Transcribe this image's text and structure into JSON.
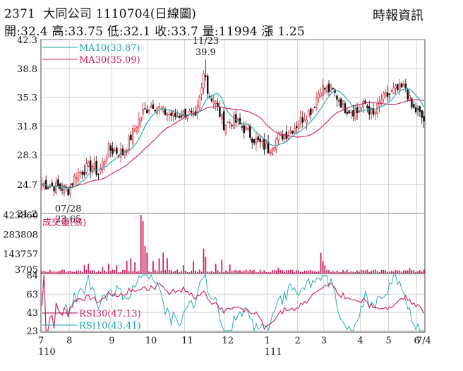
{
  "header": {
    "stock_code": "2371",
    "company": "大同公司",
    "date": "1110704",
    "chart_kind": "(日線圖)",
    "source": "時報資訊",
    "quote": {
      "open": "開:32.4",
      "high": "高:33.75",
      "low": "低:32.1",
      "close": "收:33.7",
      "volume": "量:11994",
      "change": "漲 1.25"
    }
  },
  "colors": {
    "up": "#d11a2a",
    "down": "#111111",
    "ma10": "#1aa3a6",
    "ma30": "#c81e64",
    "rsi30": "#c81e64",
    "rsi10": "#1aa3a6",
    "volume": "#c81e64",
    "grid": "#b8b8b8"
  },
  "chart_data": [
    {
      "type": "candlestick",
      "panel": "price",
      "ylim": [
        21.2,
        42.3
      ],
      "y_ticks": [
        "42.3",
        "38.8",
        "35.3",
        "31.8",
        "28.3",
        "24.7",
        "21.2"
      ],
      "legend": [
        {
          "name": "MA10(33.87)"
        },
        {
          "name": "MA30(35.09)"
        }
      ],
      "annotations": [
        {
          "date": "11/23",
          "value": "39.9",
          "label": "high"
        },
        {
          "date": "07/28",
          "value": "23.65",
          "label": "low"
        }
      ],
      "anchors": [
        {
          "i": 0,
          "v": 24.8
        },
        {
          "i": 10,
          "v": 24.3
        },
        {
          "i": 13,
          "v": 24.0
        },
        {
          "i": 17,
          "v": 26.0
        },
        {
          "i": 25,
          "v": 27.0
        },
        {
          "i": 28,
          "v": 26.0
        },
        {
          "i": 33,
          "v": 29.0
        },
        {
          "i": 40,
          "v": 28.5
        },
        {
          "i": 44,
          "v": 30.5
        },
        {
          "i": 50,
          "v": 33.5
        },
        {
          "i": 55,
          "v": 34.5
        },
        {
          "i": 60,
          "v": 33.5
        },
        {
          "i": 66,
          "v": 33.0
        },
        {
          "i": 72,
          "v": 33.5
        },
        {
          "i": 76,
          "v": 32.5
        },
        {
          "i": 80,
          "v": 37.5
        },
        {
          "i": 82,
          "v": 36.0
        },
        {
          "i": 86,
          "v": 34.5
        },
        {
          "i": 90,
          "v": 32.0
        },
        {
          "i": 95,
          "v": 32.5
        },
        {
          "i": 100,
          "v": 31.5
        },
        {
          "i": 106,
          "v": 30.0
        },
        {
          "i": 112,
          "v": 29.0
        },
        {
          "i": 117,
          "v": 30.5
        },
        {
          "i": 122,
          "v": 31.0
        },
        {
          "i": 128,
          "v": 32.5
        },
        {
          "i": 134,
          "v": 34.0
        },
        {
          "i": 138,
          "v": 36.5
        },
        {
          "i": 144,
          "v": 36.0
        },
        {
          "i": 150,
          "v": 34.0
        },
        {
          "i": 156,
          "v": 33.5
        },
        {
          "i": 160,
          "v": 34.5
        },
        {
          "i": 164,
          "v": 33.0
        },
        {
          "i": 168,
          "v": 35.0
        },
        {
          "i": 174,
          "v": 36.0
        },
        {
          "i": 180,
          "v": 36.5
        },
        {
          "i": 183,
          "v": 34.0
        },
        {
          "i": 186,
          "v": 33.5
        },
        {
          "i": 189,
          "v": 32.5
        }
      ],
      "bars": 190,
      "ma10_last": 33.87,
      "ma30_last": 35.09
    },
    {
      "type": "bar",
      "panel": "volume",
      "legend": [
        {
          "name": "成交量(張)"
        }
      ],
      "ylim": [
        0,
        423860
      ],
      "y_ticks": [
        "423860",
        "283808",
        "143757",
        "3705"
      ],
      "spikes": [
        {
          "i": 21,
          "v": 60000
        },
        {
          "i": 23,
          "v": 70000
        },
        {
          "i": 30,
          "v": 45000
        },
        {
          "i": 33,
          "v": 70000
        },
        {
          "i": 37,
          "v": 60000
        },
        {
          "i": 42,
          "v": 90000
        },
        {
          "i": 44,
          "v": 110000
        },
        {
          "i": 46,
          "v": 80000
        },
        {
          "i": 49,
          "v": 423860
        },
        {
          "i": 50,
          "v": 380000
        },
        {
          "i": 51,
          "v": 200000
        },
        {
          "i": 52,
          "v": 150000
        },
        {
          "i": 55,
          "v": 90000
        },
        {
          "i": 58,
          "v": 110000
        },
        {
          "i": 60,
          "v": 150000
        },
        {
          "i": 62,
          "v": 110000
        },
        {
          "i": 70,
          "v": 60000
        },
        {
          "i": 75,
          "v": 90000
        },
        {
          "i": 80,
          "v": 180000
        },
        {
          "i": 81,
          "v": 120000
        },
        {
          "i": 86,
          "v": 70000
        },
        {
          "i": 89,
          "v": 100000
        },
        {
          "i": 93,
          "v": 65000
        },
        {
          "i": 117,
          "v": 40000
        },
        {
          "i": 138,
          "v": 150000
        },
        {
          "i": 139,
          "v": 90000
        },
        {
          "i": 140,
          "v": 60000
        },
        {
          "i": 182,
          "v": 40000
        }
      ],
      "base_volume": 22000
    },
    {
      "type": "line",
      "panel": "rsi",
      "ylim": [
        23,
        84
      ],
      "y_ticks": [
        "84",
        "63",
        "43",
        "23"
      ],
      "series": [
        {
          "name": "RSI30(47.13)"
        },
        {
          "name": "RSI10(43.41)"
        }
      ],
      "x_ticks": [
        {
          "label": "7",
          "i": 0
        },
        {
          "label": "8",
          "i": 14
        },
        {
          "label": "9",
          "i": 35
        },
        {
          "label": "10",
          "i": 53
        },
        {
          "label": "11",
          "i": 71
        },
        {
          "label": "12",
          "i": 91
        },
        {
          "label": "1",
          "i": 112
        },
        {
          "label": "2",
          "i": 127
        },
        {
          "label": "3",
          "i": 140
        },
        {
          "label": "4",
          "i": 158
        },
        {
          "label": "5",
          "i": 172
        },
        {
          "label": "6",
          "i": 186
        },
        {
          "label": "7/4",
          "i": 189
        }
      ],
      "x_year_labels": [
        {
          "label": "110",
          "i": 0
        },
        {
          "label": "111",
          "i": 112
        }
      ]
    }
  ]
}
